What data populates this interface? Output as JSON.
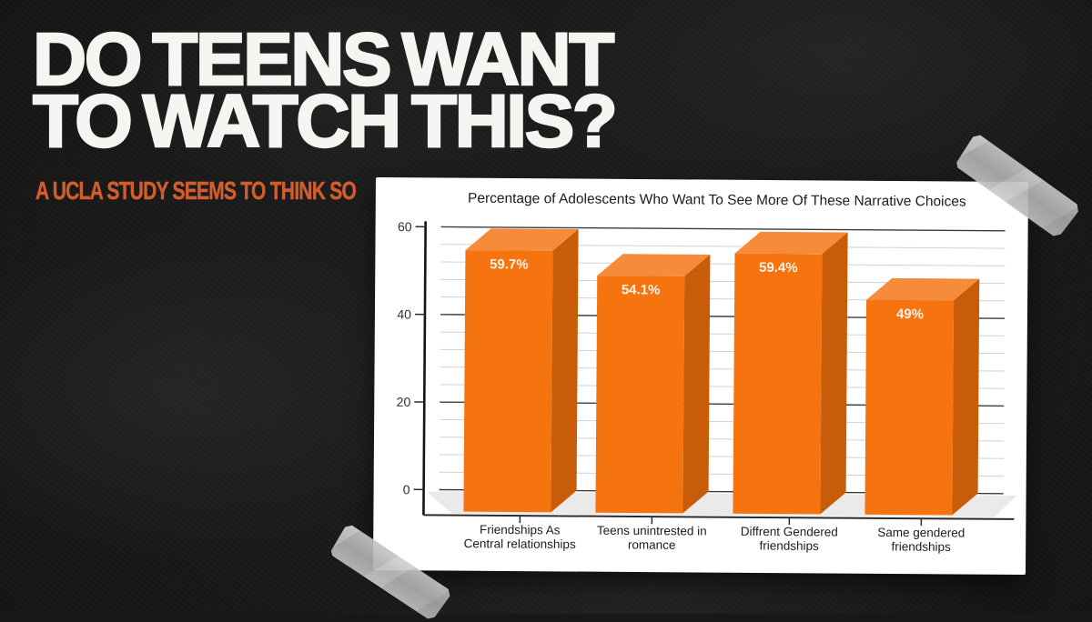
{
  "slide": {
    "title_line1": "DO TEENS WANT",
    "title_line2": "TO WATCH THIS?",
    "subtitle": "A UCLA STUDY SEEMS TO THINK SO"
  },
  "colors": {
    "background": "#1b1b1b",
    "title_text": "#f6f5f2",
    "subtitle_orange": "#d15d2c",
    "card": "#ffffff",
    "chart_text": "#1c1c1c",
    "axis_label": "#2e2e2e",
    "axis_line": "#141414",
    "grid_minor": "#d2d2d2",
    "grid_major": "#3d3d3d",
    "floor": "#eaeaea",
    "bar_front": "#f6740f",
    "bar_top": "#f78b3c",
    "bar_side": "#c85c08",
    "value_label": "#fdf3e7",
    "tape": "#b9b9b9"
  },
  "chart_data": {
    "type": "bar",
    "style": "3d-column",
    "title": "Percentage of Adolescents Who Want To See More Of These Narrative Choices",
    "categories": [
      "Friendships As\nCentral relationships",
      "Teens unintrested in\nromance",
      "Diffrent Gendered\nfriendships",
      "Same gendered\nfriendships"
    ],
    "values": [
      59.7,
      54.1,
      59.4,
      49
    ],
    "value_labels": [
      "59.7%",
      "54.1%",
      "59.4%",
      "49%"
    ],
    "xlabel": "",
    "ylabel": "",
    "ylim": [
      0,
      60
    ],
    "y_ticks": [
      0,
      20,
      40,
      60
    ],
    "minor_gridlines_per_major": 4,
    "grid": "horizontal",
    "legend": "none"
  }
}
